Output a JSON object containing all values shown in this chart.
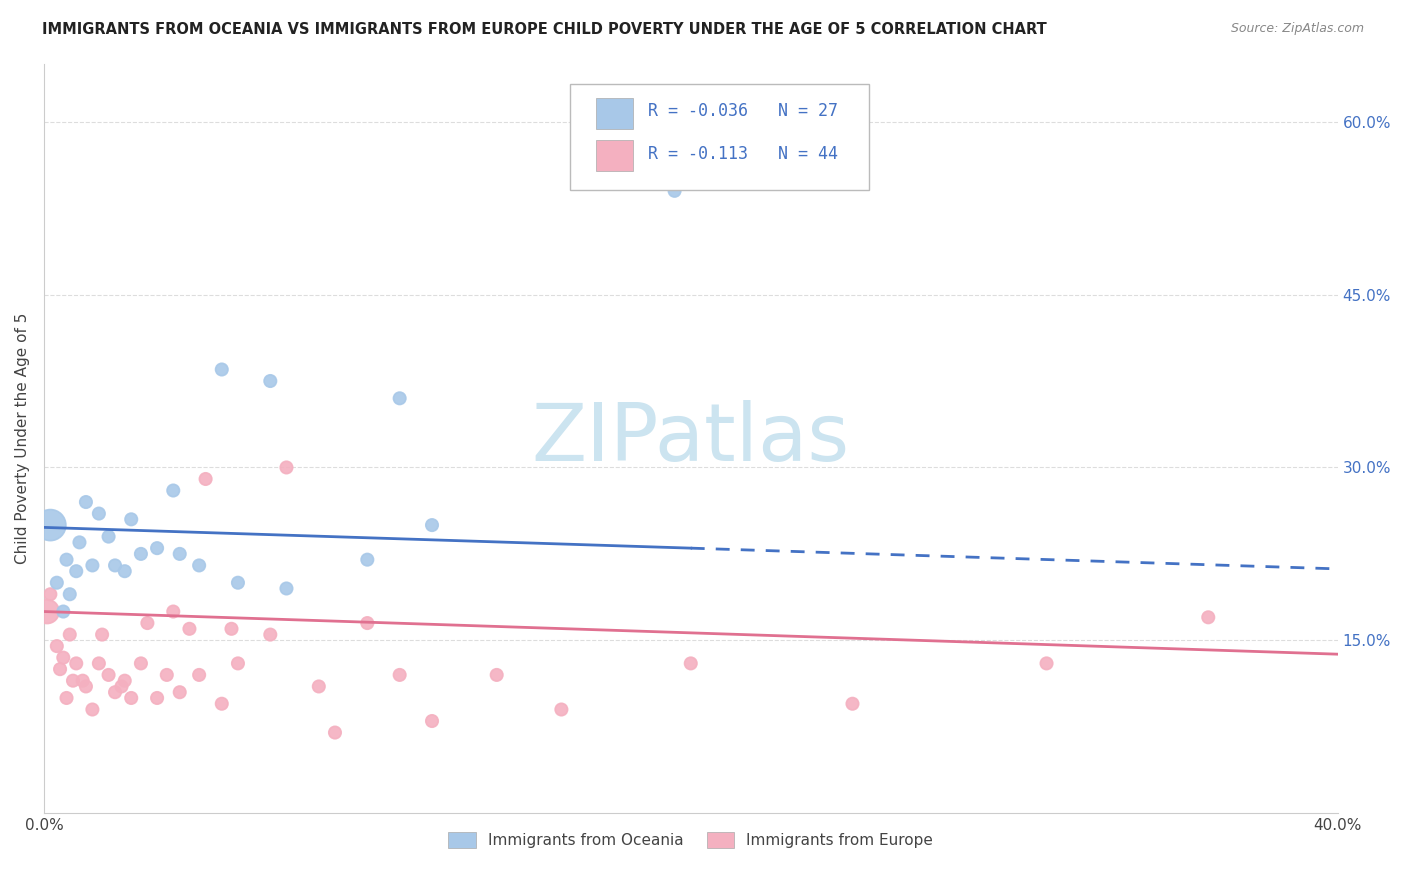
{
  "title": "IMMIGRANTS FROM OCEANIA VS IMMIGRANTS FROM EUROPE CHILD POVERTY UNDER THE AGE OF 5 CORRELATION CHART",
  "source": "Source: ZipAtlas.com",
  "ylabel": "Child Poverty Under the Age of 5",
  "xlim": [
    0,
    0.4
  ],
  "ylim": [
    0,
    0.65
  ],
  "xticks": [
    0.0,
    0.05,
    0.1,
    0.15,
    0.2,
    0.25,
    0.3,
    0.35,
    0.4
  ],
  "yticks_right": [
    0.15,
    0.3,
    0.45,
    0.6
  ],
  "ytick_right_labels": [
    "15.0%",
    "30.0%",
    "45.0%",
    "60.0%"
  ],
  "r_oceania": -0.036,
  "n_oceania": 27,
  "r_europe": -0.113,
  "n_europe": 44,
  "color_oceania": "#a8c8e8",
  "color_europe": "#f4b0c0",
  "color_line_oceania": "#4472c4",
  "color_line_europe": "#e07090",
  "oceania_x": [
    0.002,
    0.004,
    0.006,
    0.007,
    0.008,
    0.01,
    0.011,
    0.013,
    0.015,
    0.017,
    0.02,
    0.022,
    0.025,
    0.027,
    0.03,
    0.035,
    0.04,
    0.042,
    0.048,
    0.055,
    0.06,
    0.07,
    0.075,
    0.1,
    0.11,
    0.12,
    0.195
  ],
  "oceania_y": [
    0.25,
    0.2,
    0.175,
    0.22,
    0.19,
    0.21,
    0.235,
    0.27,
    0.215,
    0.26,
    0.24,
    0.215,
    0.21,
    0.255,
    0.225,
    0.23,
    0.28,
    0.225,
    0.215,
    0.385,
    0.2,
    0.375,
    0.195,
    0.22,
    0.36,
    0.25,
    0.54
  ],
  "oceania_size": [
    500,
    80,
    80,
    80,
    80,
    80,
    80,
    80,
    80,
    80,
    80,
    80,
    80,
    80,
    80,
    80,
    80,
    80,
    80,
    80,
    80,
    80,
    80,
    80,
    80,
    80,
    80
  ],
  "europe_x": [
    0.001,
    0.002,
    0.004,
    0.005,
    0.006,
    0.007,
    0.008,
    0.009,
    0.01,
    0.012,
    0.013,
    0.015,
    0.017,
    0.018,
    0.02,
    0.022,
    0.024,
    0.025,
    0.027,
    0.03,
    0.032,
    0.035,
    0.038,
    0.04,
    0.042,
    0.045,
    0.048,
    0.05,
    0.055,
    0.058,
    0.06,
    0.07,
    0.075,
    0.085,
    0.09,
    0.1,
    0.11,
    0.12,
    0.14,
    0.16,
    0.2,
    0.25,
    0.31,
    0.36
  ],
  "europe_y": [
    0.175,
    0.19,
    0.145,
    0.125,
    0.135,
    0.1,
    0.155,
    0.115,
    0.13,
    0.115,
    0.11,
    0.09,
    0.13,
    0.155,
    0.12,
    0.105,
    0.11,
    0.115,
    0.1,
    0.13,
    0.165,
    0.1,
    0.12,
    0.175,
    0.105,
    0.16,
    0.12,
    0.29,
    0.095,
    0.16,
    0.13,
    0.155,
    0.3,
    0.11,
    0.07,
    0.165,
    0.12,
    0.08,
    0.12,
    0.09,
    0.13,
    0.095,
    0.13,
    0.17
  ],
  "europe_size": [
    300,
    80,
    80,
    80,
    80,
    80,
    80,
    80,
    80,
    80,
    80,
    80,
    80,
    80,
    80,
    80,
    80,
    80,
    80,
    80,
    80,
    80,
    80,
    80,
    80,
    80,
    80,
    80,
    80,
    80,
    80,
    80,
    80,
    80,
    80,
    80,
    80,
    80,
    80,
    80,
    80,
    80,
    80,
    80
  ],
  "trend_oceania_x0": 0.0,
  "trend_oceania_y0": 0.248,
  "trend_oceania_x1": 0.2,
  "trend_oceania_y1": 0.23,
  "trend_oceania_dash_x0": 0.2,
  "trend_oceania_dash_y0": 0.23,
  "trend_oceania_dash_x1": 0.4,
  "trend_oceania_dash_y1": 0.212,
  "trend_europe_x0": 0.0,
  "trend_europe_y0": 0.175,
  "trend_europe_x1": 0.4,
  "trend_europe_y1": 0.138,
  "watermark": "ZIPatlas",
  "watermark_color": "#cce4f0",
  "background_color": "#ffffff",
  "grid_color": "#dddddd"
}
